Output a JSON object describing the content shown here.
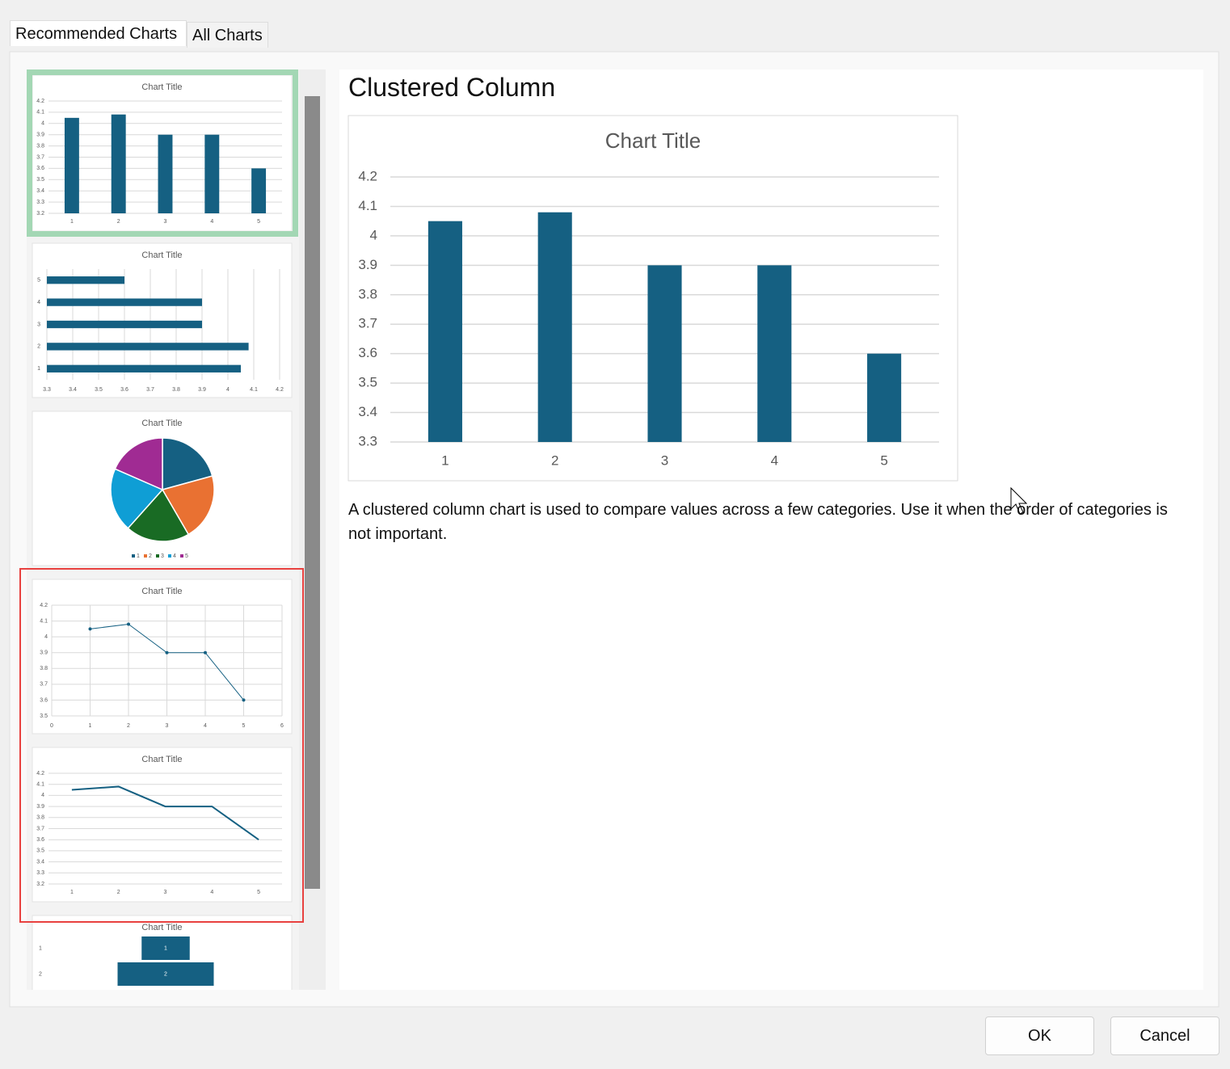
{
  "tabs": [
    "Recommended Charts",
    "All Charts"
  ],
  "thumbnails": [
    {
      "type": "column",
      "title": "Chart Title",
      "categories": [
        "1",
        "2",
        "3",
        "4",
        "5"
      ],
      "values": [
        4.05,
        4.08,
        3.9,
        3.9,
        3.6
      ],
      "color": "#156082",
      "ylim": [
        3.2,
        4.2
      ],
      "yticks": [
        3.2,
        3.3,
        3.4,
        3.5,
        3.6,
        3.7,
        3.8,
        3.9,
        4,
        4.1,
        4.2
      ],
      "grid": true
    },
    {
      "type": "bar",
      "title": "Chart Title",
      "categories": [
        "1",
        "2",
        "3",
        "4",
        "5"
      ],
      "values": [
        4.05,
        4.08,
        3.9,
        3.9,
        3.6
      ],
      "color": "#156082",
      "xlim": [
        3.3,
        4.2
      ],
      "xticks": [
        3.3,
        3.4,
        3.5,
        3.6,
        3.7,
        3.8,
        3.9,
        4,
        4.1,
        4.2
      ],
      "grid": true
    },
    {
      "type": "pie",
      "title": "Chart Title",
      "categories": [
        "1",
        "2",
        "3",
        "4",
        "5"
      ],
      "values": [
        4.05,
        4.08,
        3.9,
        3.9,
        3.6
      ],
      "colors": [
        "#156082",
        "#e97132",
        "#196b24",
        "#0f9ed5",
        "#a02b93"
      ],
      "legend": "bottom"
    },
    {
      "type": "scatter",
      "title": "Chart Title",
      "x": [
        1,
        2,
        3,
        4,
        5
      ],
      "values": [
        4.05,
        4.08,
        3.9,
        3.9,
        3.6
      ],
      "color": "#156082",
      "xlim": [
        0,
        6
      ],
      "xticks": [
        0,
        1,
        2,
        3,
        4,
        5,
        6
      ],
      "ylim": [
        3.5,
        4.2
      ],
      "yticks": [
        3.5,
        3.6,
        3.7,
        3.8,
        3.9,
        4,
        4.1,
        4.2
      ],
      "grid": true
    },
    {
      "type": "line",
      "title": "Chart Title",
      "categories": [
        "1",
        "2",
        "3",
        "4",
        "5"
      ],
      "values": [
        4.05,
        4.08,
        3.9,
        3.9,
        3.6
      ],
      "color": "#156082",
      "ylim": [
        3.2,
        4.2
      ],
      "yticks": [
        3.2,
        3.3,
        3.4,
        3.5,
        3.6,
        3.7,
        3.8,
        3.9,
        4,
        4.1,
        4.2
      ],
      "grid": true
    },
    {
      "type": "funnel",
      "title": "Chart Title",
      "categories": [
        "1",
        "2"
      ],
      "values": [
        1,
        2
      ],
      "color": "#156082"
    }
  ],
  "preview": {
    "heading": "Clustered Column",
    "chart": {
      "type": "column",
      "title": "Chart Title",
      "categories": [
        "1",
        "2",
        "3",
        "4",
        "5"
      ],
      "values": [
        4.05,
        4.08,
        3.9,
        3.9,
        3.6
      ],
      "color": "#156082",
      "ylim": [
        3.3,
        4.2
      ],
      "yticks": [
        3.3,
        3.4,
        3.5,
        3.6,
        3.7,
        3.8,
        3.9,
        4,
        4.1,
        4.2
      ],
      "grid": true
    },
    "description": "A clustered column chart is used to compare values across a few categories. Use it when the order of categories is not important."
  },
  "buttons": [
    "OK",
    "Cancel"
  ]
}
